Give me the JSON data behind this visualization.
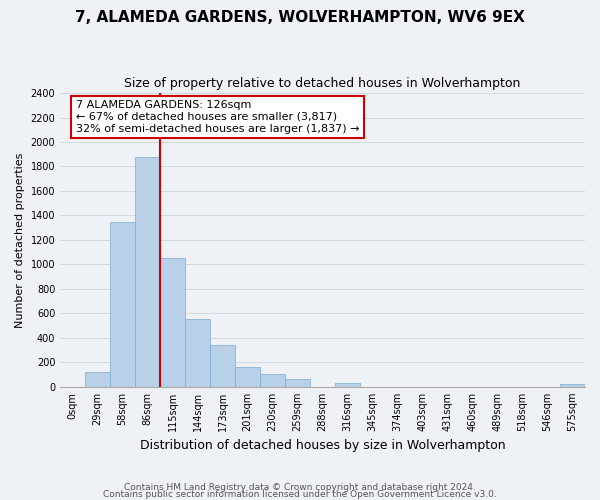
{
  "title": "7, ALAMEDA GARDENS, WOLVERHAMPTON, WV6 9EX",
  "subtitle": "Size of property relative to detached houses in Wolverhampton",
  "xlabel": "Distribution of detached houses by size in Wolverhampton",
  "ylabel": "Number of detached properties",
  "footnote1": "Contains HM Land Registry data © Crown copyright and database right 2024.",
  "footnote2": "Contains public sector information licensed under the Open Government Licence v3.0.",
  "bar_labels": [
    "0sqm",
    "29sqm",
    "58sqm",
    "86sqm",
    "115sqm",
    "144sqm",
    "173sqm",
    "201sqm",
    "230sqm",
    "259sqm",
    "288sqm",
    "316sqm",
    "345sqm",
    "374sqm",
    "403sqm",
    "431sqm",
    "460sqm",
    "489sqm",
    "518sqm",
    "546sqm",
    "575sqm"
  ],
  "bar_values": [
    0,
    125,
    1350,
    1880,
    1050,
    550,
    340,
    160,
    105,
    60,
    0,
    30,
    0,
    0,
    0,
    0,
    0,
    0,
    0,
    0,
    20
  ],
  "bar_color": "#b8d0e8",
  "bar_edge_color": "#7aaad4",
  "annotation_box_text": "7 ALAMEDA GARDENS: 126sqm\n← 67% of detached houses are smaller (3,817)\n32% of semi-detached houses are larger (1,837) →",
  "annotation_box_color": "#ffffff",
  "annotation_box_edge_color": "#cc0000",
  "vline_x": 4,
  "vline_color": "#cc0000",
  "ylim": [
    0,
    2400
  ],
  "yticks": [
    0,
    200,
    400,
    600,
    800,
    1000,
    1200,
    1400,
    1600,
    1800,
    2000,
    2200,
    2400
  ],
  "grid_color": "#d0d8e0",
  "bg_color": "#eef2f7",
  "title_fontsize": 11,
  "subtitle_fontsize": 9,
  "xlabel_fontsize": 9,
  "ylabel_fontsize": 8,
  "tick_fontsize": 7,
  "annot_fontsize": 8
}
